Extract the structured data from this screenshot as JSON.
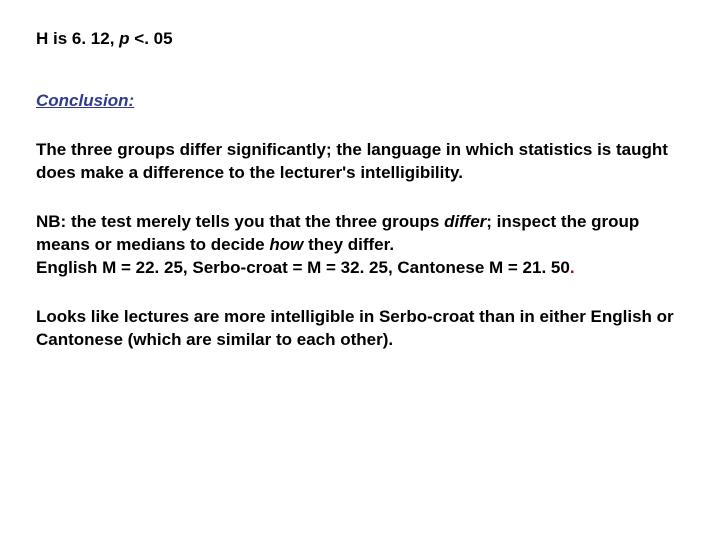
{
  "stat": {
    "prefix": "H is 6. 12, ",
    "p_label": "p",
    "suffix": " <. 05"
  },
  "conclusion_heading": "Conclusion:",
  "para1": "The three groups differ significantly; the language in which statistics is taught does make a difference to the lecturer's intelligibility.",
  "para2": {
    "t1": "NB: the test merely tells you that the three groups ",
    "differ": "differ",
    "t2": "; inspect the  group means or medians to decide ",
    "how": "how ",
    "t3": "they differ.",
    "line2a": "English M = 22. 25, Serbo-croat = M = 32. 25, Cantonese M = 21. 50",
    "line2b": "."
  },
  "para3": "Looks like lectures are more intelligible in Serbo-croat than in either English or Cantonese (which are similar to each other)."
}
